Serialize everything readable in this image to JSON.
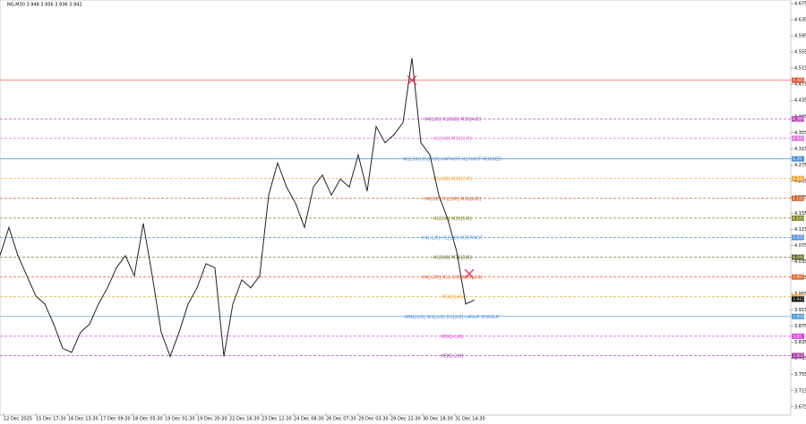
{
  "chart_data": {
    "type": "line",
    "title": "NG,M30  3.948 3.956 3.936 3.942",
    "color": "#222222",
    "values": [
      4.05,
      4.12,
      4.05,
      4.0,
      3.95,
      3.93,
      3.88,
      3.82,
      3.81,
      3.86,
      3.88,
      3.93,
      3.97,
      4.02,
      4.05,
      4.0,
      4.13,
      4.0,
      3.86,
      3.8,
      3.86,
      3.93,
      3.97,
      4.03,
      4.02,
      3.8,
      3.93,
      3.99,
      3.97,
      4.0,
      4.2,
      4.28,
      4.22,
      4.18,
      4.12,
      4.22,
      4.25,
      4.2,
      4.24,
      4.22,
      4.3,
      4.21,
      4.37,
      4.33,
      4.35,
      4.38,
      4.54,
      4.33,
      4.3,
      4.2,
      4.14,
      4.06,
      3.93,
      3.94
    ],
    "xtick_labels": [
      "12 Dec 2025",
      "15 Dec 17:30",
      "16 Dec 13:30",
      "17 Dec 09:30",
      "18 Dec 05:30",
      "19 Dec 01:30",
      "19 Dec 20:30",
      "22 Dec 16:30",
      "23 Dec 12:30",
      "24 Dec 08:30",
      "26 Dec 07:30",
      "29 Dec 03:30",
      "29 Dec 22:30",
      "30 Dec 18:30",
      "31 Dec 14:30"
    ],
    "ylim": [
      3.659,
      4.684
    ],
    "yticks": [
      3.675,
      3.715,
      3.755,
      3.795,
      3.835,
      3.875,
      3.915,
      3.955,
      3.995,
      4.035,
      4.075,
      4.115,
      4.155,
      4.195,
      4.235,
      4.275,
      4.315,
      4.355,
      4.395,
      4.435,
      4.475,
      4.515,
      4.555,
      4.595,
      4.635,
      4.675
    ],
    "levels": [
      {
        "value": 4.485,
        "color": "#e05030",
        "dash": false
      },
      {
        "value": 4.389,
        "label": "H4[1/8] H1[6/8] M30[4/8]",
        "color": "#c040c0",
        "dash": true
      },
      {
        "value": 4.341,
        "label": "H1[5/8] M30[1/8]",
        "color": "#e070e0",
        "dash": true
      },
      {
        "value": 4.29,
        "label": "W1[3/8] D1[7/8] H4PIVOT H1PIVOT M30RED",
        "color": "#4a90d9",
        "dash": false
      },
      {
        "value": 4.241,
        "label": "H1[4/8] M30[7/8]",
        "color": "#f0a030",
        "dash": true
      },
      {
        "value": 4.192,
        "label": "H4[0/8] H1[3/8] M30[6/8]",
        "color": "#d06020",
        "dash": true
      },
      {
        "value": 4.143,
        "label": "H1[2/8] M30[5/8]",
        "color": "#808020",
        "dash": true
      },
      {
        "value": 4.095,
        "label": "H4[-1/8] H1[1/8] M30PIVOT",
        "color": "#4a90d9",
        "dash": true
      },
      {
        "value": 4.046,
        "label": "H1[0/8] M30[3/8]",
        "color": "#606020",
        "dash": true
      },
      {
        "value": 3.997,
        "label": "H4[-2/8] H1[-1/8] M30[2/8]",
        "color": "#e06030",
        "dash": true
      },
      {
        "value": 3.948,
        "label": "M30[1/8]",
        "color": "#f0a030",
        "dash": true
      },
      {
        "value": 3.899,
        "label": "MN1[1/8] W1[2/8] D1[2/8] H4SUP M30SUP",
        "color": "#4a90d9",
        "dash": false
      },
      {
        "value": 3.85,
        "label": "M30[-1/8]",
        "color": "#e040e0",
        "dash": true
      },
      {
        "value": 3.802,
        "label": "M30[-2/8]",
        "color": "#a030a0",
        "dash": true
      }
    ],
    "current_price": 3.942,
    "markers": [
      {
        "x": 46,
        "value": 4.485
      },
      {
        "x": 52.4,
        "value": 4.005
      }
    ]
  }
}
